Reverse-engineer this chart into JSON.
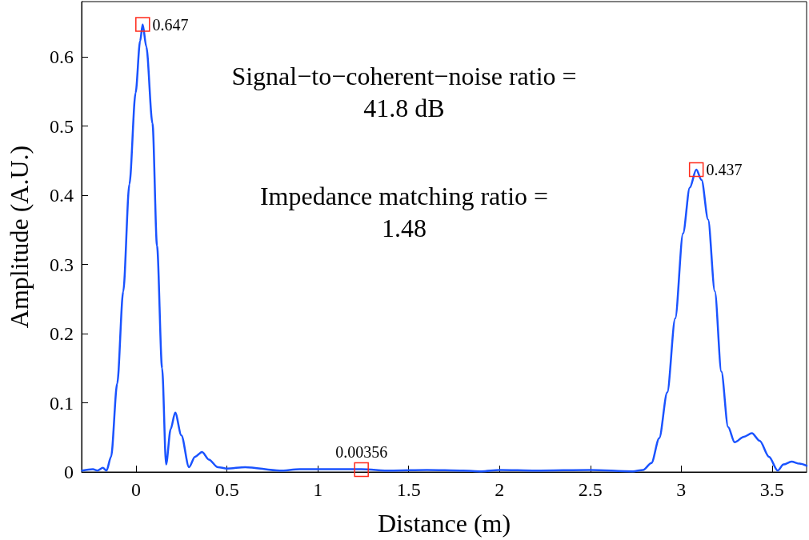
{
  "chart_data": {
    "type": "line",
    "xlabel": "Distance (m)",
    "ylabel": "Amplitude (A.U.)",
    "xlim": [
      -0.3,
      3.69
    ],
    "xticks": [
      0,
      0.5,
      1,
      1.5,
      2,
      2.5,
      3,
      3.5
    ],
    "ylim": [
      0,
      0.68
    ],
    "yticks": [
      0,
      0.1,
      0.2,
      0.3,
      0.4,
      0.5,
      0.6
    ],
    "grid": false,
    "marker": "none",
    "line_style": "solid",
    "series": [
      {
        "color": "#1a53ff",
        "x": [
          -0.297,
          -0.238,
          -0.213,
          -0.183,
          -0.163,
          -0.138,
          -0.104,
          -0.071,
          -0.037,
          -0.003,
          0.022,
          0.036,
          0.056,
          0.09,
          0.115,
          0.143,
          0.165,
          0.19,
          0.215,
          0.249,
          0.291,
          0.324,
          0.363,
          0.4,
          0.45,
          0.5,
          0.6,
          0.79,
          0.9,
          1.0,
          1.24,
          1.4,
          1.6,
          1.8,
          1.9,
          2.0,
          2.2,
          2.5,
          2.734,
          2.79,
          2.836,
          2.879,
          2.923,
          2.967,
          3.01,
          3.047,
          3.083,
          3.112,
          3.148,
          3.185,
          3.221,
          3.258,
          3.294,
          3.345,
          3.389,
          3.432,
          3.483,
          3.531,
          3.563,
          3.607,
          3.651,
          3.69
        ],
        "values": [
          0.002,
          0.004,
          0.002,
          0.006,
          0.002,
          0.022,
          0.128,
          0.261,
          0.416,
          0.548,
          0.623,
          0.647,
          0.615,
          0.504,
          0.327,
          0.15,
          0.011,
          0.062,
          0.086,
          0.053,
          0.007,
          0.022,
          0.029,
          0.018,
          0.007,
          0.005,
          0.007,
          0.002,
          0.004,
          0.004,
          0.004,
          0.002,
          0.003,
          0.002,
          0.001,
          0.003,
          0.002,
          0.003,
          0.001,
          0.003,
          0.013,
          0.049,
          0.115,
          0.222,
          0.345,
          0.411,
          0.437,
          0.422,
          0.365,
          0.261,
          0.145,
          0.065,
          0.043,
          0.051,
          0.056,
          0.045,
          0.022,
          0.002,
          0.011,
          0.015,
          0.012,
          0.009
        ]
      }
    ],
    "annotations": [
      {
        "text": "0.647",
        "x": 0.036,
        "y": 0.647
      },
      {
        "text": "0.437",
        "x": 3.083,
        "y": 0.437
      },
      {
        "text": "0.00356",
        "x": 1.24,
        "y": 0.00356
      },
      "Signal−to−coherent−noise ratio =\n41.8 dB",
      "Impedance matching ratio =\n1.48"
    ]
  }
}
